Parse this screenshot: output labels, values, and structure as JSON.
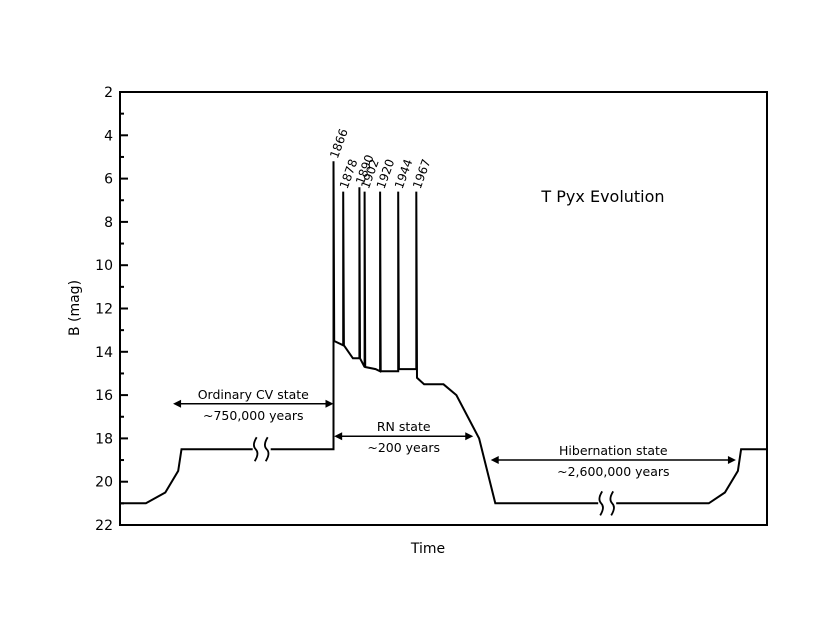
{
  "chart_data": {
    "type": "line",
    "title": "T Pyx Evolution",
    "xlabel": "Time",
    "ylabel": "B (mag)",
    "ylim": [
      22,
      2
    ],
    "y_inverted": true,
    "y_ticks": [
      "2",
      "4",
      "6",
      "8",
      "10",
      "12",
      "14",
      "16",
      "18",
      "20",
      "22"
    ],
    "grid": false,
    "x_axis_ticks": "none",
    "axis_breaks": 3,
    "series": [
      {
        "points": [
          [
            0,
            21.0
          ],
          [
            4,
            21.0
          ],
          [
            7,
            20.5
          ],
          [
            9,
            19.5
          ],
          [
            9.5,
            18.5
          ],
          [
            33,
            18.5
          ],
          [
            33,
            5.2
          ],
          [
            33.1,
            13.5
          ],
          [
            34.5,
            13.7
          ],
          [
            34.5,
            6.6
          ],
          [
            34.6,
            13.7
          ],
          [
            36,
            14.3
          ],
          [
            37,
            14.3
          ],
          [
            37,
            6.4
          ],
          [
            37.1,
            14.3
          ],
          [
            37.8,
            14.7
          ],
          [
            37.8,
            6.6
          ],
          [
            37.9,
            14.7
          ],
          [
            39.5,
            14.8
          ],
          [
            40.2,
            14.9
          ],
          [
            40.2,
            6.6
          ],
          [
            40.3,
            14.9
          ],
          [
            43,
            14.9
          ],
          [
            43,
            6.6
          ],
          [
            43.1,
            14.8
          ],
          [
            45.8,
            14.8
          ],
          [
            45.8,
            6.6
          ],
          [
            45.9,
            15.2
          ],
          [
            47,
            15.5
          ],
          [
            50,
            15.5
          ],
          [
            52,
            16.0
          ],
          [
            55.5,
            18.0
          ],
          [
            58,
            21.0
          ],
          [
            91,
            21.0
          ],
          [
            93.5,
            20.5
          ],
          [
            95.5,
            19.5
          ],
          [
            96,
            18.5
          ],
          [
            100,
            18.5
          ]
        ]
      }
    ],
    "outbursts": [
      {
        "year": "1866",
        "peak": 5.2
      },
      {
        "year": "1878",
        "peak": 6.6
      },
      {
        "year": "1890",
        "peak": 6.4
      },
      {
        "year": "1902",
        "peak": 6.6
      },
      {
        "year": "1920",
        "peak": 6.6
      },
      {
        "year": "1944",
        "peak": 6.6
      },
      {
        "year": "1967",
        "peak": 6.6
      }
    ],
    "annotations": [
      {
        "label": "Ordinary CV state",
        "sublabel": "~750,000 years",
        "mag": 16.4
      },
      {
        "label": "RN state",
        "sublabel": "~200 years",
        "mag": 17.9
      },
      {
        "label": "Hibernation state",
        "sublabel": "~2,600,000 years",
        "mag": 19.0
      }
    ]
  }
}
